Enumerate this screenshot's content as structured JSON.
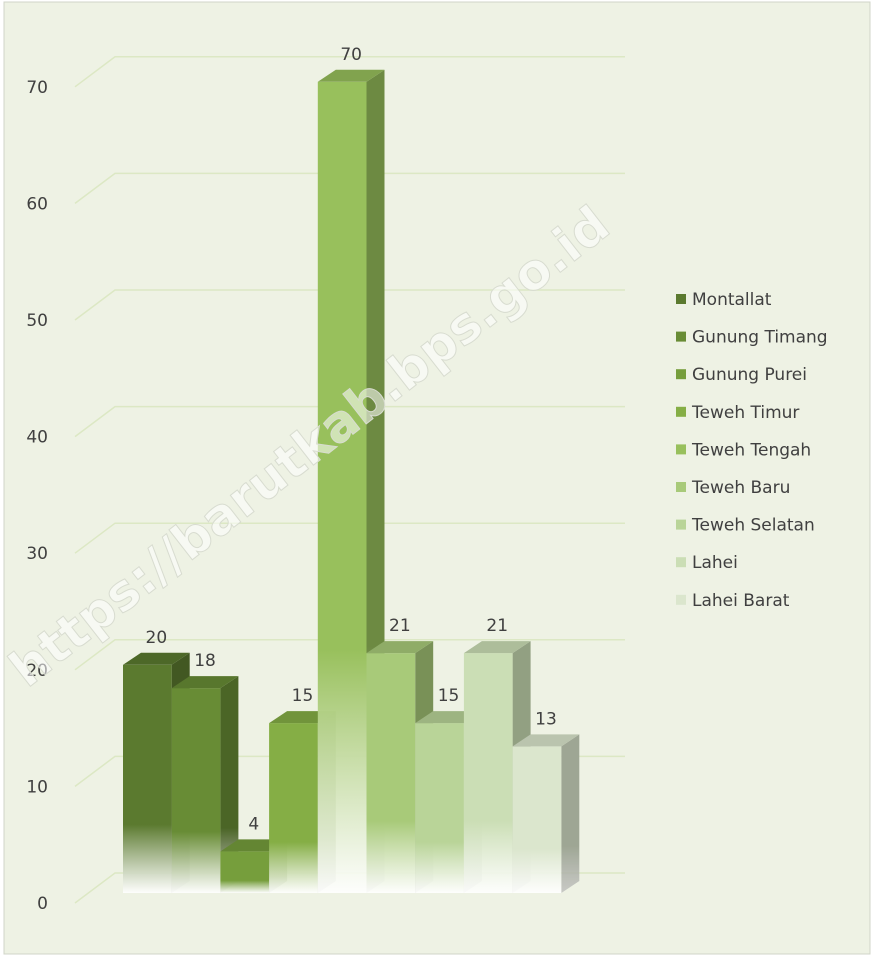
{
  "chart_data": {
    "type": "bar3d",
    "watermark": "https://barutkab.bps.go.id",
    "ylim": [
      0,
      70
    ],
    "yticks": [
      0,
      10,
      20,
      30,
      40,
      50,
      60,
      70
    ],
    "grid": true,
    "legend": "right",
    "series": [
      {
        "name": "Montallat",
        "color": "#5b7a2f",
        "values": [
          20
        ]
      },
      {
        "name": "Gunung Timang",
        "color": "#688c35",
        "values": [
          18
        ]
      },
      {
        "name": "Gunung Purei",
        "color": "#769e3c",
        "values": [
          4
        ]
      },
      {
        "name": "Teweh Timur",
        "color": "#85ae45",
        "values": [
          15
        ]
      },
      {
        "name": "Teweh Tengah",
        "color": "#98c05c",
        "values": [
          70
        ]
      },
      {
        "name": "Teweh Baru",
        "color": "#a8ca79",
        "values": [
          21
        ]
      },
      {
        "name": "Teweh Selatan",
        "color": "#b9d498",
        "values": [
          15
        ]
      },
      {
        "name": "Lahei",
        "color": "#cbdeb5",
        "values": [
          21
        ]
      },
      {
        "name": "Lahei Barat",
        "color": "#dbe6cd",
        "values": [
          13
        ]
      }
    ]
  }
}
